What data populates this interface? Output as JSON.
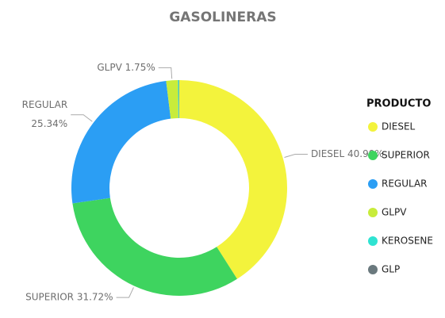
{
  "chart_data": {
    "type": "donut",
    "title": "GASOLINERAS",
    "categories": [
      "DIESEL",
      "SUPERIOR",
      "REGULAR",
      "GLPV",
      "KEROSENE",
      "GLP"
    ],
    "values": [
      40.99,
      31.72,
      25.34,
      1.75,
      0.15,
      0.05
    ],
    "value_labels": [
      "DIESEL 40.99%",
      "SUPERIOR 31.72%",
      [
        "REGULAR",
        "25.34%"
      ],
      "GLPV 1.75%",
      null,
      null
    ],
    "colors": [
      "#f3f33c",
      "#3ed45f",
      "#2b9ef4",
      "#c8ec3b",
      "#2fe3d2",
      "#6a797e"
    ],
    "legend": {
      "title": "PRODUCTO",
      "position": "right"
    }
  }
}
